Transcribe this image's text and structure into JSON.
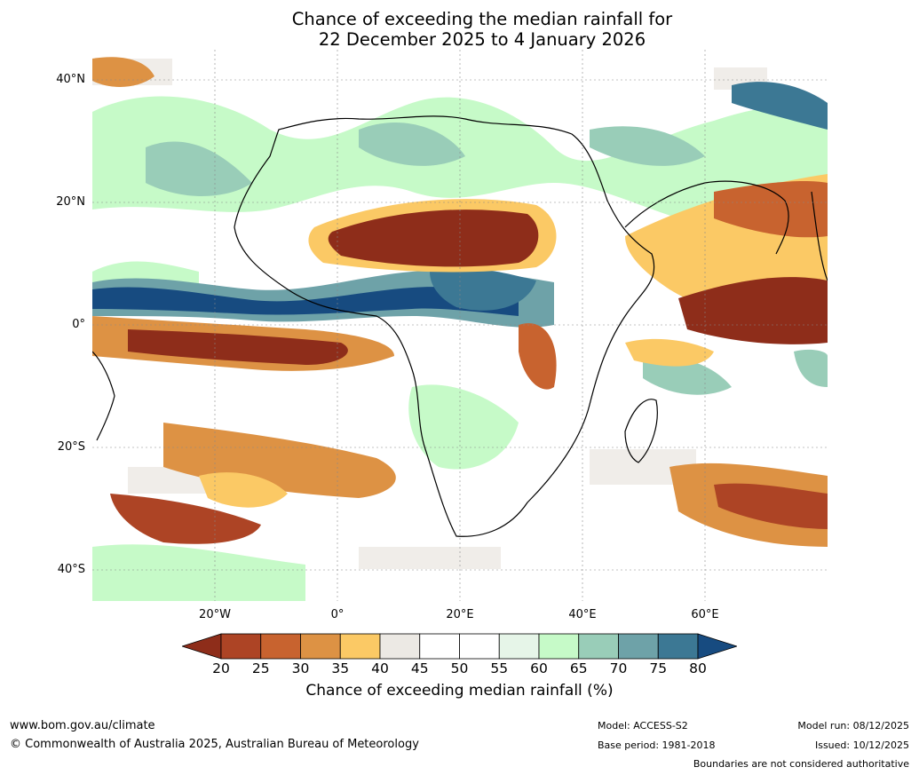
{
  "title": {
    "line1": "Chance of exceeding the median rainfall for",
    "line2": "22 December 2025 to 4 January 2026"
  },
  "axes": {
    "lat_labels": [
      "40°N",
      "20°N",
      "0°",
      "20°S",
      "40°S"
    ],
    "lon_labels": [
      "20°W",
      "0°",
      "20°E",
      "40°E",
      "60°E"
    ]
  },
  "colorbar": {
    "ticks": [
      "20",
      "25",
      "30",
      "35",
      "40",
      "45",
      "50",
      "55",
      "60",
      "65",
      "70",
      "75",
      "80"
    ],
    "colors": [
      "#8e2d1a",
      "#ad4425",
      "#c8632f",
      "#dd9244",
      "#fbc965",
      "#ece9e4",
      "#ffffff",
      "#ffffff",
      "#e6f5e8",
      "#c6fac8",
      "#99cdb8",
      "#6ea2a8",
      "#3c7894",
      "#174b80"
    ],
    "label": "Chance of exceeding median rainfall (%)"
  },
  "footer": {
    "website": "www.bom.gov.au/climate",
    "copyright": "© Commonwealth of Australia 2025, Australian Bureau of Meteorology",
    "model": "Model: ACCESS-S2",
    "base_period": "Base period: 1981-2018",
    "model_run": "Model run: 08/12/2025",
    "issued": "Issued: 10/12/2025",
    "disclaimer": "Boundaries are not considered authoritative"
  }
}
